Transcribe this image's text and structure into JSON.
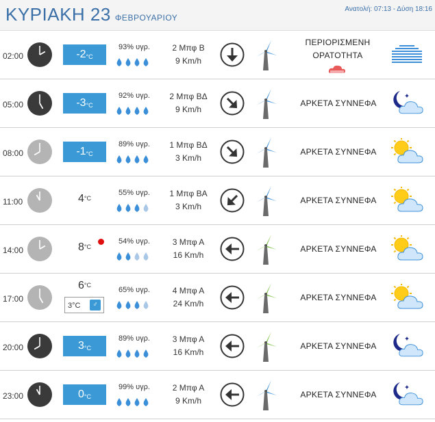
{
  "header": {
    "day": "ΚΥΡΙΑΚΗ 23",
    "month": "ΦΕΒΡΟΥΑΡΙΟΥ",
    "sun": "Ανατολή: 07:13  - Δύση 18:16"
  },
  "rows": [
    {
      "time": "02:00",
      "clock": "dark",
      "hour": 2,
      "temp": "-2",
      "temp_style": "box",
      "hum": "93% υγρ.",
      "drops": 4,
      "wind1": "2 Μπφ Β",
      "wind2": "9 Km/h",
      "arrow": "south",
      "turbine": "blue",
      "cond": "ΠΕΡΙΟΡΙΣΜΕΝΗ ΟΡΑΤΟΤΗΤΑ",
      "weather_icon": "fog-icon"
    },
    {
      "time": "05:00",
      "clock": "dark",
      "hour": 5,
      "temp": "-3",
      "temp_style": "box",
      "hum": "92% υγρ.",
      "drops": 4,
      "wind1": "2 Μπφ ΒΔ",
      "wind2": "9 Km/h",
      "arrow": "southeast",
      "turbine": "blue",
      "cond": "ΑΡΚΕΤΑ ΣΥΝΝΕΦΑ",
      "weather_icon": "moon-cloud-icon"
    },
    {
      "time": "08:00",
      "clock": "light",
      "hour": 8,
      "temp": "-1",
      "temp_style": "box",
      "hum": "89% υγρ.",
      "drops": 4,
      "wind1": "1 Μπφ ΒΔ",
      "wind2": "3 Km/h",
      "arrow": "southeast",
      "turbine": "blue",
      "cond": "ΑΡΚΕΤΑ ΣΥΝΝΕΦΑ",
      "weather_icon": "sun-cloud-icon"
    },
    {
      "time": "11:00",
      "clock": "light",
      "hour": 11,
      "temp": "4",
      "temp_style": "plain",
      "hum": "55% υγρ.",
      "drops": 3,
      "wind1": "1 Μπφ ΒΑ",
      "wind2": "3 Km/h",
      "arrow": "southwest",
      "turbine": "blue",
      "cond": "ΑΡΚΕΤΑ ΣΥΝΝΕΦΑ",
      "weather_icon": "sun-cloud-icon"
    },
    {
      "time": "14:00",
      "clock": "light",
      "hour": 2,
      "temp": "8",
      "temp_style": "plain",
      "hot": true,
      "hum": "54% υγρ.",
      "drops": 2,
      "wind1": "3 Μπφ Α",
      "wind2": "16 Km/h",
      "arrow": "west",
      "turbine": "green",
      "cond": "ΑΡΚΕΤΑ ΣΥΝΝΕΦΑ",
      "weather_icon": "sun-cloud-icon"
    },
    {
      "time": "17:00",
      "clock": "light",
      "hour": 5,
      "temp": "6",
      "temp_style": "plain",
      "feels": "3°C",
      "hum": "65% υγρ.",
      "drops": 3,
      "wind1": "4 Μπφ Α",
      "wind2": "24 Km/h",
      "arrow": "west",
      "turbine": "green",
      "cond": "ΑΡΚΕΤΑ ΣΥΝΝΕΦΑ",
      "weather_icon": "sun-cloud-icon"
    },
    {
      "time": "20:00",
      "clock": "dark",
      "hour": 8,
      "temp": "3",
      "temp_style": "box",
      "hum": "89% υγρ.",
      "drops": 4,
      "wind1": "3 Μπφ Α",
      "wind2": "16 Km/h",
      "arrow": "west",
      "turbine": "green",
      "cond": "ΑΡΚΕΤΑ ΣΥΝΝΕΦΑ",
      "weather_icon": "moon-cloud-icon"
    },
    {
      "time": "23:00",
      "clock": "dark",
      "hour": 11,
      "temp": "0",
      "temp_style": "box",
      "hum": "99% υγρ.",
      "drops": 4,
      "wind1": "2 Μπφ Α",
      "wind2": "9 Km/h",
      "arrow": "west",
      "turbine": "blue",
      "cond": "ΑΡΚΕΤΑ ΣΥΝΝΕΦΑ",
      "weather_icon": "moon-cloud-icon"
    }
  ],
  "units": {
    "temp": "°C"
  },
  "colors": {
    "accent": "#3b9ad6",
    "title": "#3a6fa8",
    "clock_dark": "#3a3a3a",
    "clock_light": "#b4b4b4",
    "drop_dark": "#3b8fd8",
    "drop_light": "#a9c8e6",
    "turbine_blue": "#3b8fd8",
    "turbine_green": "#7cc242",
    "red": "#e01010"
  }
}
